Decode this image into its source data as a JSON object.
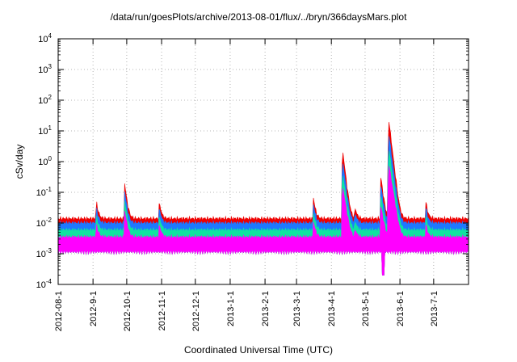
{
  "chart_data": {
    "type": "area",
    "title": "/data/run/goesPlots/archive/2013-08-01/flux/../bryn/366daysMars.plot",
    "xlabel": "Coordinated Universal Time (UTC)",
    "ylabel": "cSv/day",
    "yscale": "log",
    "ylim": [
      0.0001,
      10000
    ],
    "y_ticks": [
      {
        "value": 0.0001,
        "base": "10",
        "exp": "-4"
      },
      {
        "value": 0.001,
        "base": "10",
        "exp": "-3"
      },
      {
        "value": 0.01,
        "base": "10",
        "exp": "-2"
      },
      {
        "value": 0.1,
        "base": "10",
        "exp": "-1"
      },
      {
        "value": 1,
        "base": "10",
        "exp": "0"
      },
      {
        "value": 10,
        "base": "10",
        "exp": "1"
      },
      {
        "value": 100,
        "base": "10",
        "exp": "2"
      },
      {
        "value": 1000,
        "base": "10",
        "exp": "3"
      },
      {
        "value": 10000,
        "base": "10",
        "exp": "4"
      }
    ],
    "xlim": [
      "2012-08-01",
      "2013-08-01"
    ],
    "x_ticks": [
      "2012-08-1",
      "2012-9-1",
      "2012-10-1",
      "2012-11-1",
      "2012-12-1",
      "2013-1-1",
      "2013-2-1",
      "2013-3-1",
      "2013-4-1",
      "2013-5-1",
      "2013-6-1",
      "2013-7-1"
    ],
    "x_tick_dates": [
      "2012-08-01",
      "2012-09-01",
      "2012-10-01",
      "2012-11-01",
      "2012-12-01",
      "2013-01-01",
      "2013-02-01",
      "2013-03-01",
      "2013-04-01",
      "2013-05-01",
      "2013-06-01",
      "2013-07-01"
    ],
    "grid": true,
    "series_colors": [
      "#ee0000",
      "#1e78ff",
      "#10e3a0",
      "#ff00ff"
    ],
    "baseline": {
      "red": 0.014,
      "blue": 0.01,
      "green": 0.006,
      "magenta": 0.0035,
      "magenta_floor": 0.0012
    },
    "events": [
      {
        "date": "2012-09-04",
        "peak": 0.05
      },
      {
        "date": "2012-09-29",
        "peak": 0.22
      },
      {
        "date": "2012-10-30",
        "peak": 0.05
      },
      {
        "date": "2013-03-16",
        "peak": 0.07
      },
      {
        "date": "2013-04-11",
        "peak": 2.5
      },
      {
        "date": "2013-04-22",
        "peak": 0.035
      },
      {
        "date": "2013-05-15",
        "peak": 0.35
      },
      {
        "date": "2013-05-22",
        "peak": 25
      },
      {
        "date": "2013-06-24",
        "peak": 0.05
      }
    ],
    "dips": [
      {
        "date": "2013-05-17",
        "value": 0.0002
      }
    ]
  }
}
